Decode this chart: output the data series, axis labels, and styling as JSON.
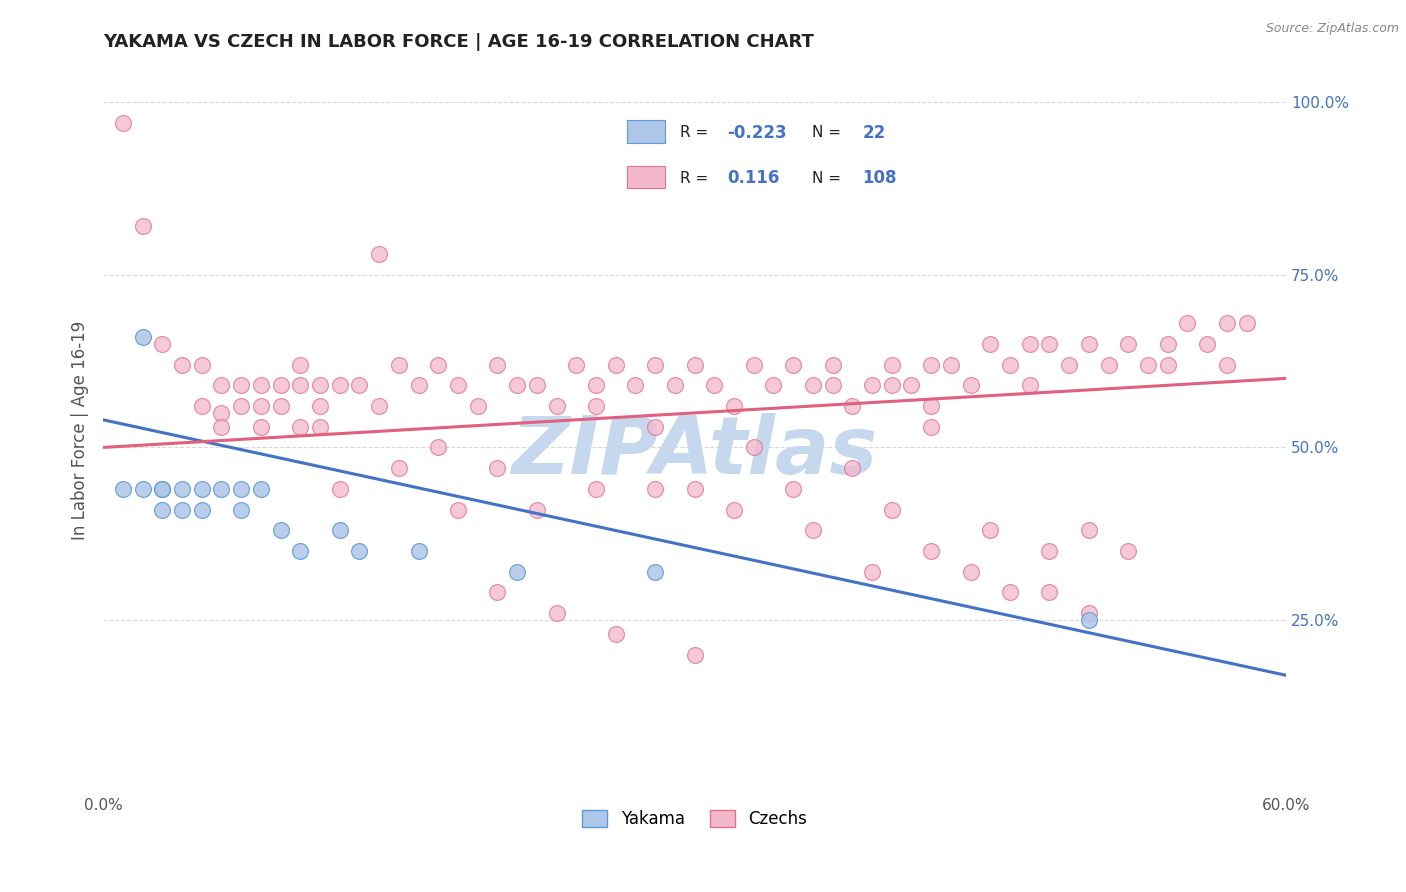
{
  "title": "YAKAMA VS CZECH IN LABOR FORCE | AGE 16-19 CORRELATION CHART",
  "source": "Source: ZipAtlas.com",
  "ylabel": "In Labor Force | Age 16-19",
  "xlim": [
    0.0,
    0.6
  ],
  "ylim": [
    0.0,
    1.05
  ],
  "yticks_right": [
    0.25,
    0.5,
    0.75,
    1.0
  ],
  "ytick_labels_right": [
    "25.0%",
    "50.0%",
    "75.0%",
    "100.0%"
  ],
  "legend_r_yakama": "-0.223",
  "legend_n_yakama": "22",
  "legend_r_czech": "0.116",
  "legend_n_czech": "108",
  "yakama_fill": "#aec6e8",
  "yakama_edge": "#5b9bd5",
  "czech_fill": "#f4b8cb",
  "czech_edge": "#e07090",
  "yakama_line_color": "#4472c4",
  "czech_line_color": "#e06080",
  "watermark": "ZIPAtlas",
  "watermark_color": "#c5d8ed",
  "background_color": "#ffffff",
  "title_fontsize": 13,
  "ytick_color": "#4472c4",
  "grid_color": "#d8d8d8",
  "yakama_x": [
    0.01,
    0.02,
    0.02,
    0.03,
    0.03,
    0.03,
    0.04,
    0.04,
    0.05,
    0.05,
    0.06,
    0.07,
    0.07,
    0.08,
    0.09,
    0.1,
    0.12,
    0.13,
    0.16,
    0.21,
    0.28,
    0.5
  ],
  "yakama_y": [
    0.44,
    0.66,
    0.44,
    0.44,
    0.44,
    0.41,
    0.44,
    0.41,
    0.44,
    0.41,
    0.44,
    0.44,
    0.41,
    0.44,
    0.38,
    0.35,
    0.38,
    0.35,
    0.35,
    0.32,
    0.32,
    0.25
  ],
  "czech_x": [
    0.01,
    0.02,
    0.03,
    0.04,
    0.05,
    0.05,
    0.06,
    0.06,
    0.06,
    0.07,
    0.07,
    0.08,
    0.08,
    0.08,
    0.09,
    0.09,
    0.1,
    0.1,
    0.1,
    0.11,
    0.11,
    0.11,
    0.12,
    0.13,
    0.14,
    0.14,
    0.15,
    0.16,
    0.17,
    0.18,
    0.19,
    0.2,
    0.21,
    0.22,
    0.23,
    0.24,
    0.25,
    0.25,
    0.26,
    0.27,
    0.28,
    0.29,
    0.3,
    0.31,
    0.32,
    0.33,
    0.34,
    0.35,
    0.36,
    0.37,
    0.37,
    0.38,
    0.39,
    0.4,
    0.4,
    0.41,
    0.42,
    0.42,
    0.43,
    0.44,
    0.45,
    0.46,
    0.47,
    0.47,
    0.48,
    0.49,
    0.5,
    0.51,
    0.52,
    0.53,
    0.54,
    0.54,
    0.55,
    0.56,
    0.57,
    0.57,
    0.58,
    0.38,
    0.42,
    0.33,
    0.17,
    0.28,
    0.2,
    0.3,
    0.15,
    0.12,
    0.25,
    0.18,
    0.22,
    0.35,
    0.4,
    0.28,
    0.32,
    0.36,
    0.45,
    0.48,
    0.5,
    0.52,
    0.39,
    0.42,
    0.44,
    0.46,
    0.48,
    0.5,
    0.2,
    0.23,
    0.26,
    0.3
  ],
  "czech_y": [
    0.97,
    0.82,
    0.65,
    0.62,
    0.62,
    0.56,
    0.59,
    0.55,
    0.53,
    0.59,
    0.56,
    0.59,
    0.56,
    0.53,
    0.59,
    0.56,
    0.62,
    0.59,
    0.53,
    0.59,
    0.56,
    0.53,
    0.59,
    0.59,
    0.56,
    0.78,
    0.62,
    0.59,
    0.62,
    0.59,
    0.56,
    0.62,
    0.59,
    0.59,
    0.56,
    0.62,
    0.59,
    0.56,
    0.62,
    0.59,
    0.62,
    0.59,
    0.62,
    0.59,
    0.56,
    0.62,
    0.59,
    0.62,
    0.59,
    0.62,
    0.59,
    0.47,
    0.59,
    0.62,
    0.59,
    0.59,
    0.62,
    0.56,
    0.62,
    0.59,
    0.65,
    0.62,
    0.65,
    0.59,
    0.65,
    0.62,
    0.65,
    0.62,
    0.65,
    0.62,
    0.65,
    0.62,
    0.68,
    0.65,
    0.68,
    0.62,
    0.68,
    0.56,
    0.53,
    0.5,
    0.5,
    0.53,
    0.47,
    0.44,
    0.47,
    0.44,
    0.44,
    0.41,
    0.41,
    0.44,
    0.41,
    0.44,
    0.41,
    0.38,
    0.38,
    0.35,
    0.38,
    0.35,
    0.32,
    0.35,
    0.32,
    0.29,
    0.29,
    0.26,
    0.29,
    0.26,
    0.23,
    0.2
  ],
  "yakama_trend": [
    0.54,
    0.17
  ],
  "czech_trend": [
    0.5,
    0.6
  ]
}
